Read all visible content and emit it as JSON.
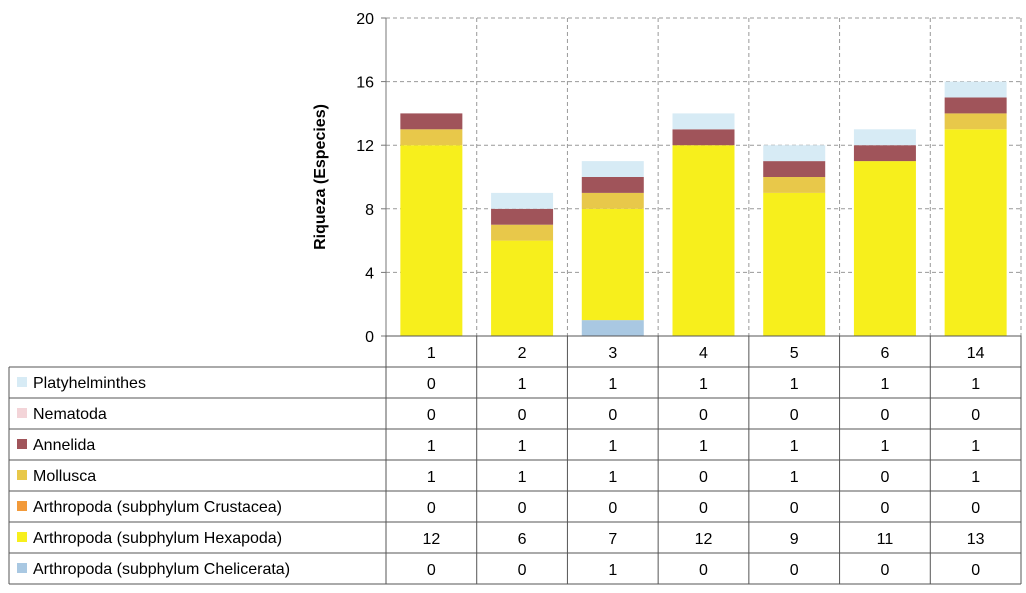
{
  "chart_data": {
    "type": "bar",
    "stacked": true,
    "ylabel": "Riqueza (Especies)",
    "ylim": [
      0,
      20
    ],
    "yticks": [
      0,
      4,
      8,
      12,
      16,
      20
    ],
    "grid": true,
    "legend": "data-table-below",
    "categories": [
      "1",
      "2",
      "3",
      "4",
      "5",
      "6",
      "14"
    ],
    "series": [
      {
        "name": "Platyhelminthes",
        "color": "#d7ebf5",
        "values": [
          0,
          1,
          1,
          1,
          1,
          1,
          1
        ]
      },
      {
        "name": "Nematoda",
        "color": "#f3d4d8",
        "values": [
          0,
          0,
          0,
          0,
          0,
          0,
          0
        ]
      },
      {
        "name": "Annelida",
        "color": "#a0545a",
        "values": [
          1,
          1,
          1,
          1,
          1,
          1,
          1
        ]
      },
      {
        "name": "Mollusca",
        "color": "#e8c84a",
        "values": [
          1,
          1,
          1,
          0,
          1,
          0,
          1
        ]
      },
      {
        "name": "Arthropoda (subphylum Crustacea)",
        "color": "#f29a3a",
        "values": [
          0,
          0,
          0,
          0,
          0,
          0,
          0
        ]
      },
      {
        "name": "Arthropoda (subphylum Hexapoda)",
        "color": "#f7ef1c",
        "values": [
          12,
          6,
          7,
          12,
          9,
          11,
          13
        ]
      },
      {
        "name": "Arthropoda (subphylum Chelicerata)",
        "color": "#a9c8e2",
        "values": [
          0,
          0,
          1,
          0,
          0,
          0,
          0
        ]
      }
    ]
  }
}
